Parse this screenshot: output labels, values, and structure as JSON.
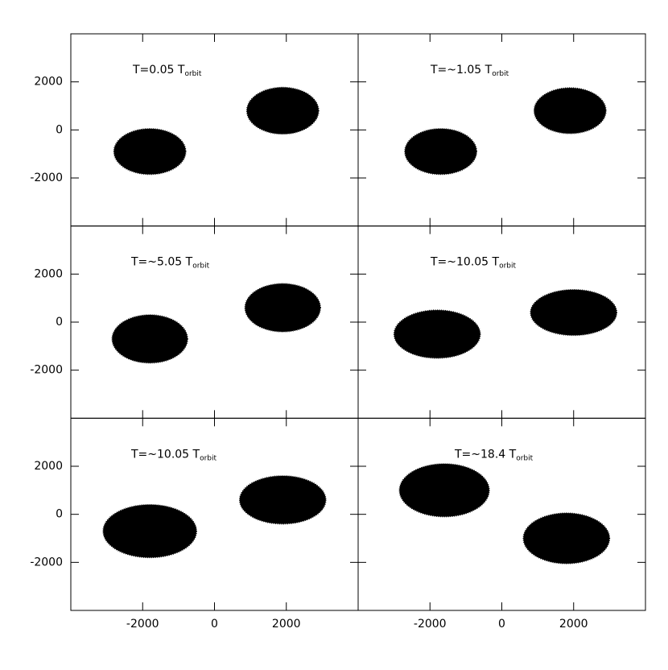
{
  "chart_data": [
    {
      "type": "scatter",
      "title": "T=0.05 T",
      "title_subscript": "orbit",
      "xlim": [
        -4000,
        4000
      ],
      "ylim": [
        -4000,
        4000
      ],
      "xticks": [
        -2000,
        0,
        2000
      ],
      "yticks": [
        -2000,
        0,
        2000
      ],
      "color": "#000000",
      "blobs": [
        {
          "x": -1800,
          "y": -900,
          "rx": 1000,
          "ry": 950
        },
        {
          "x": 1900,
          "y": 800,
          "rx": 1000,
          "ry": 970
        }
      ]
    },
    {
      "type": "scatter",
      "title": "T=~1.05 T",
      "title_subscript": "orbit",
      "xlim": [
        -4000,
        4000
      ],
      "ylim": [
        -4000,
        4000
      ],
      "xticks": [
        -2000,
        0,
        2000
      ],
      "yticks": [
        -2000,
        0,
        2000
      ],
      "color": "#000000",
      "blobs": [
        {
          "x": -1700,
          "y": -900,
          "rx": 1000,
          "ry": 950
        },
        {
          "x": 1900,
          "y": 800,
          "rx": 1000,
          "ry": 950
        }
      ]
    },
    {
      "type": "scatter",
      "title": "T=~5.05 T",
      "title_subscript": "orbit",
      "xlim": [
        -4000,
        4000
      ],
      "ylim": [
        -4000,
        4000
      ],
      "xticks": [
        -2000,
        0,
        2000
      ],
      "yticks": [
        -2000,
        0,
        2000
      ],
      "color": "#000000",
      "blobs": [
        {
          "x": -1800,
          "y": -700,
          "rx": 1050,
          "ry": 1000
        },
        {
          "x": 1900,
          "y": 600,
          "rx": 1050,
          "ry": 1000
        }
      ]
    },
    {
      "type": "scatter",
      "title": "T=~10.05 T",
      "title_subscript": "orbit",
      "xlim": [
        -4000,
        4000
      ],
      "ylim": [
        -4000,
        4000
      ],
      "xticks": [
        -2000,
        0,
        2000
      ],
      "yticks": [
        -2000,
        0,
        2000
      ],
      "color": "#000000",
      "blobs": [
        {
          "x": -1800,
          "y": -500,
          "rx": 1200,
          "ry": 1000
        },
        {
          "x": 2000,
          "y": 400,
          "rx": 1200,
          "ry": 950
        }
      ]
    },
    {
      "type": "scatter",
      "title": "T=~10.05 T",
      "title_subscript": "orbit",
      "xlim": [
        -4000,
        4000
      ],
      "ylim": [
        -4000,
        4000
      ],
      "xticks": [
        -2000,
        0,
        2000
      ],
      "yticks": [
        -2000,
        0,
        2000
      ],
      "color": "#000000",
      "blobs": [
        {
          "x": -1800,
          "y": -700,
          "rx": 1300,
          "ry": 1100
        },
        {
          "x": 1900,
          "y": 600,
          "rx": 1200,
          "ry": 1000
        }
      ]
    },
    {
      "type": "scatter",
      "title": "T=~18.4 T",
      "title_subscript": "orbit",
      "xlim": [
        -4000,
        4000
      ],
      "ylim": [
        -4000,
        4000
      ],
      "xticks": [
        -2000,
        0,
        2000
      ],
      "yticks": [
        -2000,
        0,
        2000
      ],
      "color": "#000000",
      "blobs": [
        {
          "x": -1600,
          "y": 1000,
          "rx": 1250,
          "ry": 1100
        },
        {
          "x": 1800,
          "y": -1000,
          "rx": 1200,
          "ry": 1050
        }
      ]
    }
  ]
}
